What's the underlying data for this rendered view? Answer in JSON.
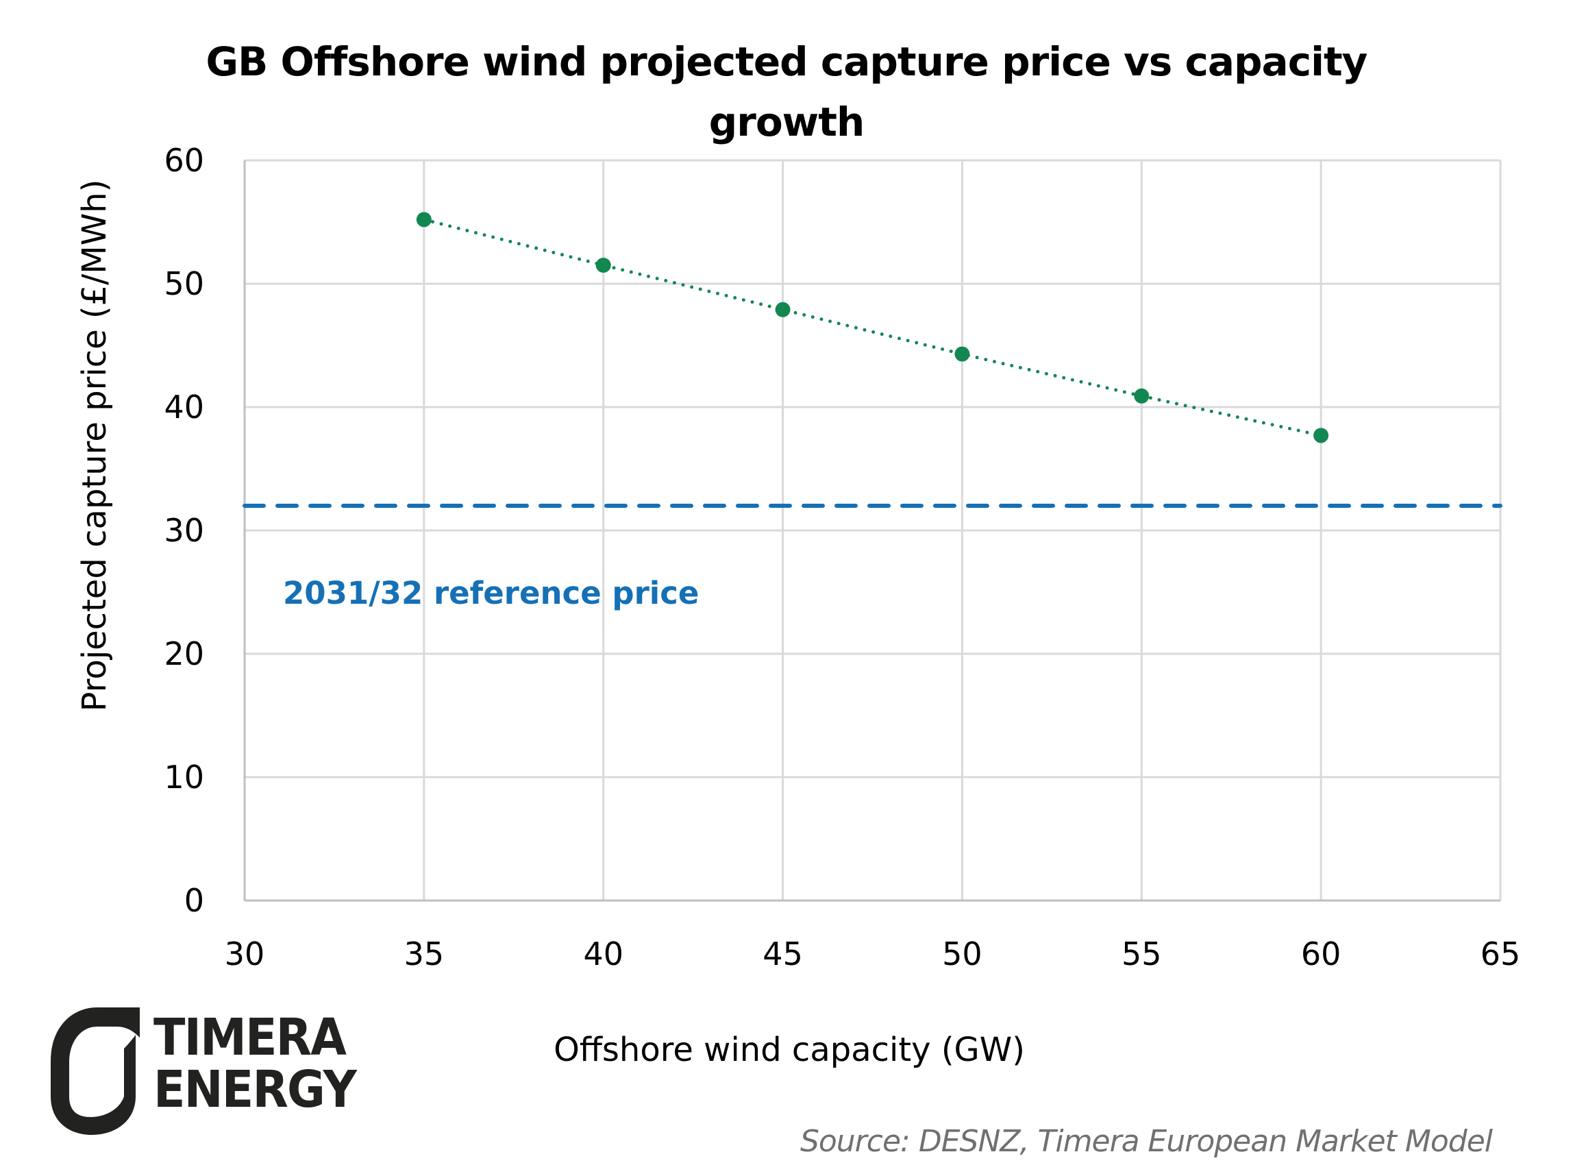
{
  "chart_data": {
    "type": "scatter",
    "title": "GB Offshore wind projected capture price vs capacity growth",
    "title_lines": [
      "GB Offshore wind projected capture price vs capacity",
      "growth"
    ],
    "xlabel": "Offshore wind capacity (GW)",
    "ylabel": "Projected capture price (£/MWh)",
    "xlim": [
      30,
      65
    ],
    "ylim": [
      0,
      60
    ],
    "xticks": [
      30,
      35,
      40,
      45,
      50,
      55,
      60,
      65
    ],
    "yticks": [
      0,
      10,
      20,
      30,
      40,
      50,
      60
    ],
    "grid": true,
    "series": [
      {
        "name": "Projected capture price",
        "color": "#138751",
        "line_style": "dotted",
        "marker": "circle",
        "x": [
          35,
          40,
          45,
          50,
          55,
          60
        ],
        "y": [
          55.2,
          51.5,
          47.9,
          44.3,
          40.9,
          37.7
        ]
      }
    ],
    "reference_line": {
      "label": "2031/32 reference price",
      "value": 32,
      "color": "#1570b6",
      "line_style": "dashed"
    }
  },
  "source": "Source: DESNZ, Timera European Market Model",
  "logo": {
    "line1": "TIMERA",
    "line2": "ENERGY",
    "color": "#222220"
  },
  "colors": {
    "grid": "#d9d9d9",
    "axis": "#bfbfbf"
  }
}
